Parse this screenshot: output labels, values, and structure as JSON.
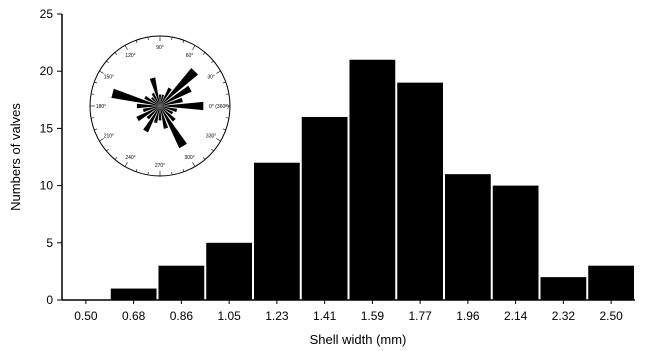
{
  "chart_data": [
    {
      "type": "bar",
      "xlabel": "Shell width (mm)",
      "ylabel": "Numbers of valves",
      "categories": [
        "0.50",
        "0.68",
        "0.86",
        "1.05",
        "1.23",
        "1.41",
        "1.59",
        "1.77",
        "1.96",
        "2.14",
        "2.32",
        "2.50"
      ],
      "values": [
        0,
        1,
        3,
        5,
        12,
        16,
        21,
        19,
        11,
        10,
        2,
        3
      ],
      "ylim": [
        0,
        25
      ],
      "yticks": [
        0,
        5,
        10,
        15,
        20,
        25
      ],
      "bar_color": "#000000",
      "grid": false
    },
    {
      "type": "rose",
      "position": "top-left inset",
      "angle_labels": [
        {
          "deg": 0,
          "text": "0° (360°)"
        },
        {
          "deg": 30,
          "text": "30°"
        },
        {
          "deg": 60,
          "text": "60°"
        },
        {
          "deg": 90,
          "text": "90°"
        },
        {
          "deg": 120,
          "text": "120°"
        },
        {
          "deg": 150,
          "text": "150°"
        },
        {
          "deg": 180,
          "text": "180°"
        },
        {
          "deg": 210,
          "text": "210°"
        },
        {
          "deg": 240,
          "text": "240°"
        },
        {
          "deg": 270,
          "text": "270°"
        },
        {
          "deg": 300,
          "text": "300°"
        },
        {
          "deg": 330,
          "text": "330°"
        }
      ],
      "petals": [
        {
          "deg": 0,
          "value": 0.75
        },
        {
          "deg": 15,
          "value": 0.4
        },
        {
          "deg": 30,
          "value": 0.6
        },
        {
          "deg": 45,
          "value": 0.85
        },
        {
          "deg": 60,
          "value": 0.35
        },
        {
          "deg": 75,
          "value": 0.2
        },
        {
          "deg": 90,
          "value": 0.2
        },
        {
          "deg": 105,
          "value": 0.5
        },
        {
          "deg": 120,
          "value": 0.25
        },
        {
          "deg": 135,
          "value": 0.2
        },
        {
          "deg": 150,
          "value": 0.3
        },
        {
          "deg": 165,
          "value": 0.85
        },
        {
          "deg": 180,
          "value": 0.4
        },
        {
          "deg": 195,
          "value": 0.3
        },
        {
          "deg": 210,
          "value": 0.45
        },
        {
          "deg": 225,
          "value": 0.3
        },
        {
          "deg": 240,
          "value": 0.5
        },
        {
          "deg": 255,
          "value": 0.3
        },
        {
          "deg": 270,
          "value": 0.25
        },
        {
          "deg": 285,
          "value": 0.4
        },
        {
          "deg": 300,
          "value": 0.8
        },
        {
          "deg": 315,
          "value": 0.35
        },
        {
          "deg": 330,
          "value": 0.25
        },
        {
          "deg": 345,
          "value": 0.3
        }
      ],
      "petal_color": "#000000"
    }
  ]
}
